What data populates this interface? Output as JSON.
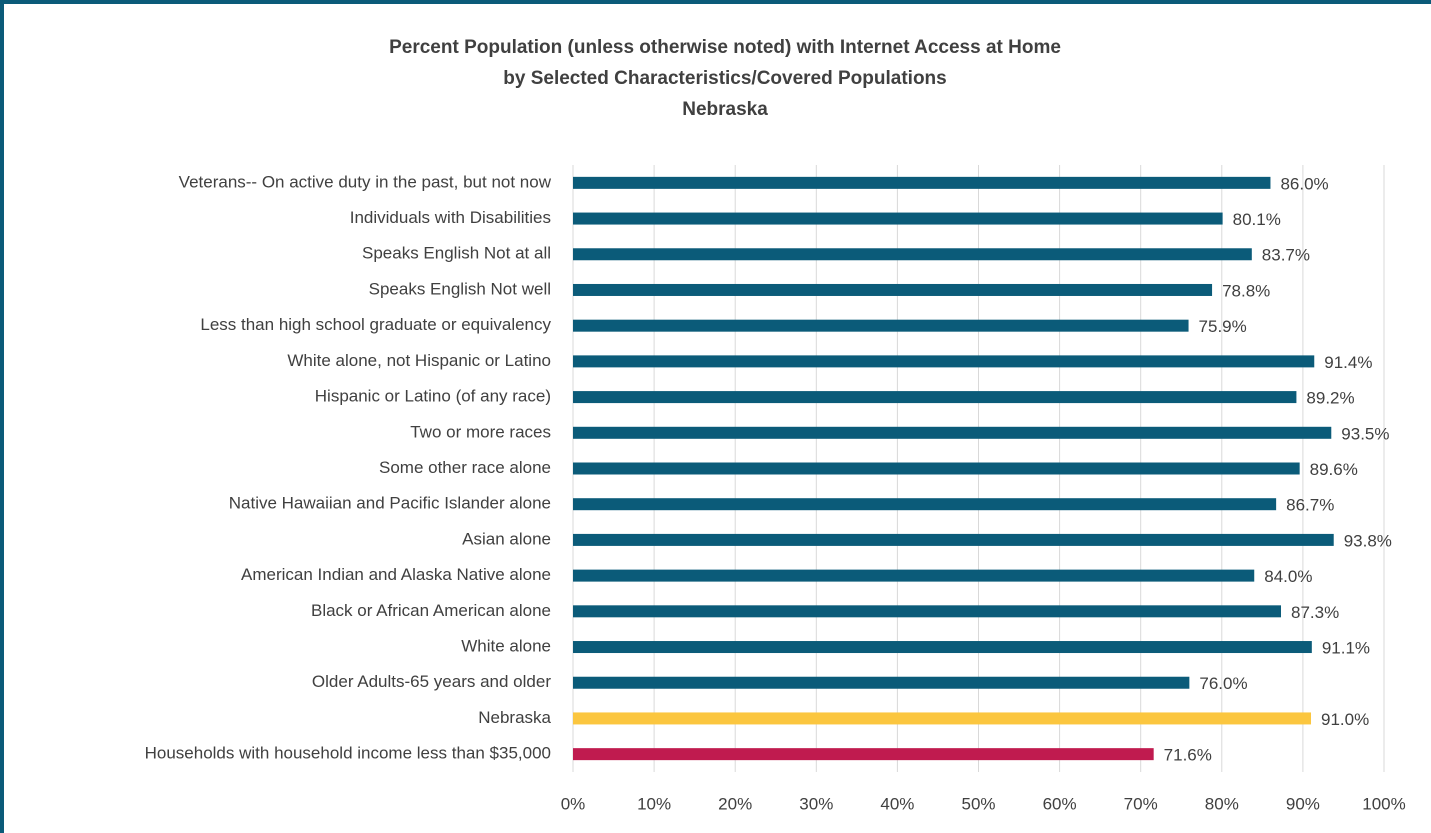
{
  "chart_data": {
    "type": "bar",
    "orientation": "horizontal",
    "title": [
      "Percent Population (unless otherwise noted) with Internet Access at Home",
      "by Selected Characteristics/Covered Populations",
      "Nebraska"
    ],
    "categories": [
      "Veterans-- On active duty in the past, but not now",
      "Individuals with Disabilities",
      "Speaks English Not at all",
      "Speaks English Not well",
      "Less than high school graduate or equivalency",
      "White alone, not Hispanic or Latino",
      "Hispanic or Latino (of any race)",
      "Two or more races",
      "Some other race alone",
      "Native Hawaiian and Pacific Islander alone",
      "Asian alone",
      "American Indian and Alaska Native alone",
      "Black or African American alone",
      "White alone",
      "Older Adults-65 years and older",
      "Nebraska",
      "Households with household income less than $35,000"
    ],
    "values": [
      86.0,
      80.1,
      83.7,
      78.8,
      75.9,
      91.4,
      89.2,
      93.5,
      89.6,
      86.7,
      93.8,
      84.0,
      87.3,
      91.1,
      76.0,
      91.0,
      71.6
    ],
    "value_labels": [
      "86.0%",
      "80.1%",
      "83.7%",
      "78.8%",
      "75.9%",
      "91.4%",
      "89.2%",
      "93.5%",
      "89.6%",
      "86.7%",
      "93.8%",
      "84.0%",
      "87.3%",
      "91.1%",
      "76.0%",
      "91.0%",
      "71.6%"
    ],
    "colors": [
      "#0b5b79",
      "#0b5b79",
      "#0b5b79",
      "#0b5b79",
      "#0b5b79",
      "#0b5b79",
      "#0b5b79",
      "#0b5b79",
      "#0b5b79",
      "#0b5b79",
      "#0b5b79",
      "#0b5b79",
      "#0b5b79",
      "#0b5b79",
      "#0b5b79",
      "#fbc63f",
      "#c01b4f"
    ],
    "xlim": [
      0,
      100
    ],
    "xticks": [
      {
        "value": 0,
        "label": "0%"
      },
      {
        "value": 10,
        "label": "10%"
      },
      {
        "value": 20,
        "label": "20%"
      },
      {
        "value": 30,
        "label": "30%"
      },
      {
        "value": 40,
        "label": "40%"
      },
      {
        "value": 50,
        "label": "50%"
      },
      {
        "value": 60,
        "label": "60%"
      },
      {
        "value": 70,
        "label": "70%"
      },
      {
        "value": 80,
        "label": "80%"
      },
      {
        "value": 90,
        "label": "90%"
      },
      {
        "value": 100,
        "label": "100%"
      }
    ],
    "grid": true
  }
}
